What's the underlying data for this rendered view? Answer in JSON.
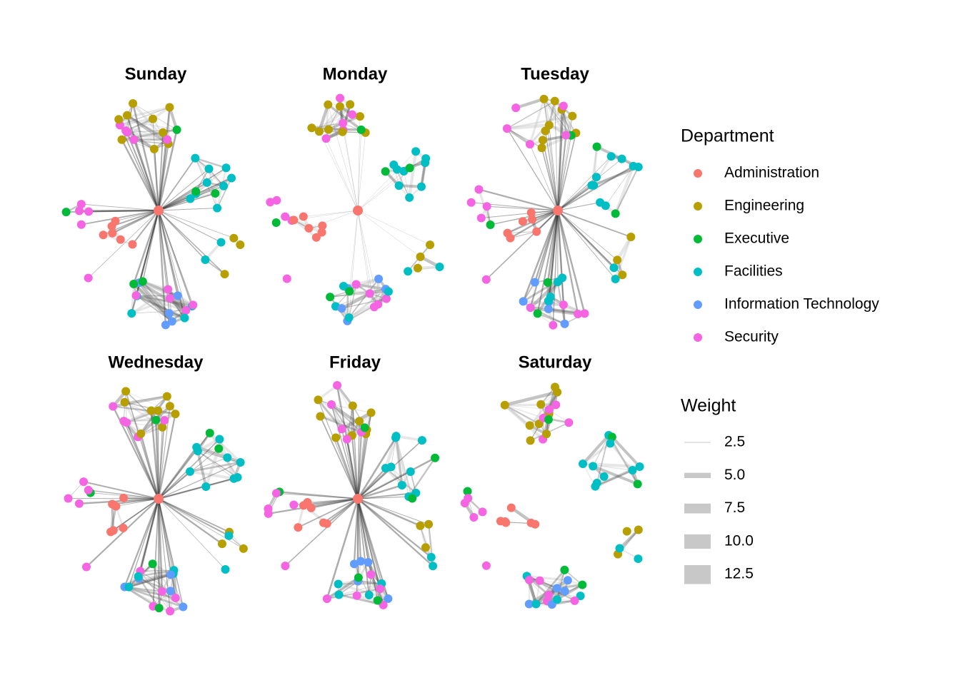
{
  "panels": [
    {
      "title": "Sunday"
    },
    {
      "title": "Monday"
    },
    {
      "title": "Tuesday"
    },
    {
      "title": "Wednesday"
    },
    {
      "title": "Friday"
    },
    {
      "title": "Saturday"
    }
  ],
  "legend": {
    "department_title": "Department",
    "departments": [
      {
        "name": "Administration",
        "color": "#f8766d"
      },
      {
        "name": "Engineering",
        "color": "#b79f00"
      },
      {
        "name": "Executive",
        "color": "#00ba38"
      },
      {
        "name": "Facilities",
        "color": "#00bfc4"
      },
      {
        "name": "Information Technology",
        "color": "#619cff"
      },
      {
        "name": "Security",
        "color": "#f564e3"
      }
    ],
    "weight_title": "Weight",
    "weights": [
      {
        "value": 2.5,
        "label": "2.5"
      },
      {
        "value": 5,
        "label": "5.0"
      },
      {
        "value": 7.5,
        "label": "7.5"
      },
      {
        "value": 10,
        "label": "10.0"
      },
      {
        "value": 12.5,
        "label": "12.5"
      }
    ]
  }
}
